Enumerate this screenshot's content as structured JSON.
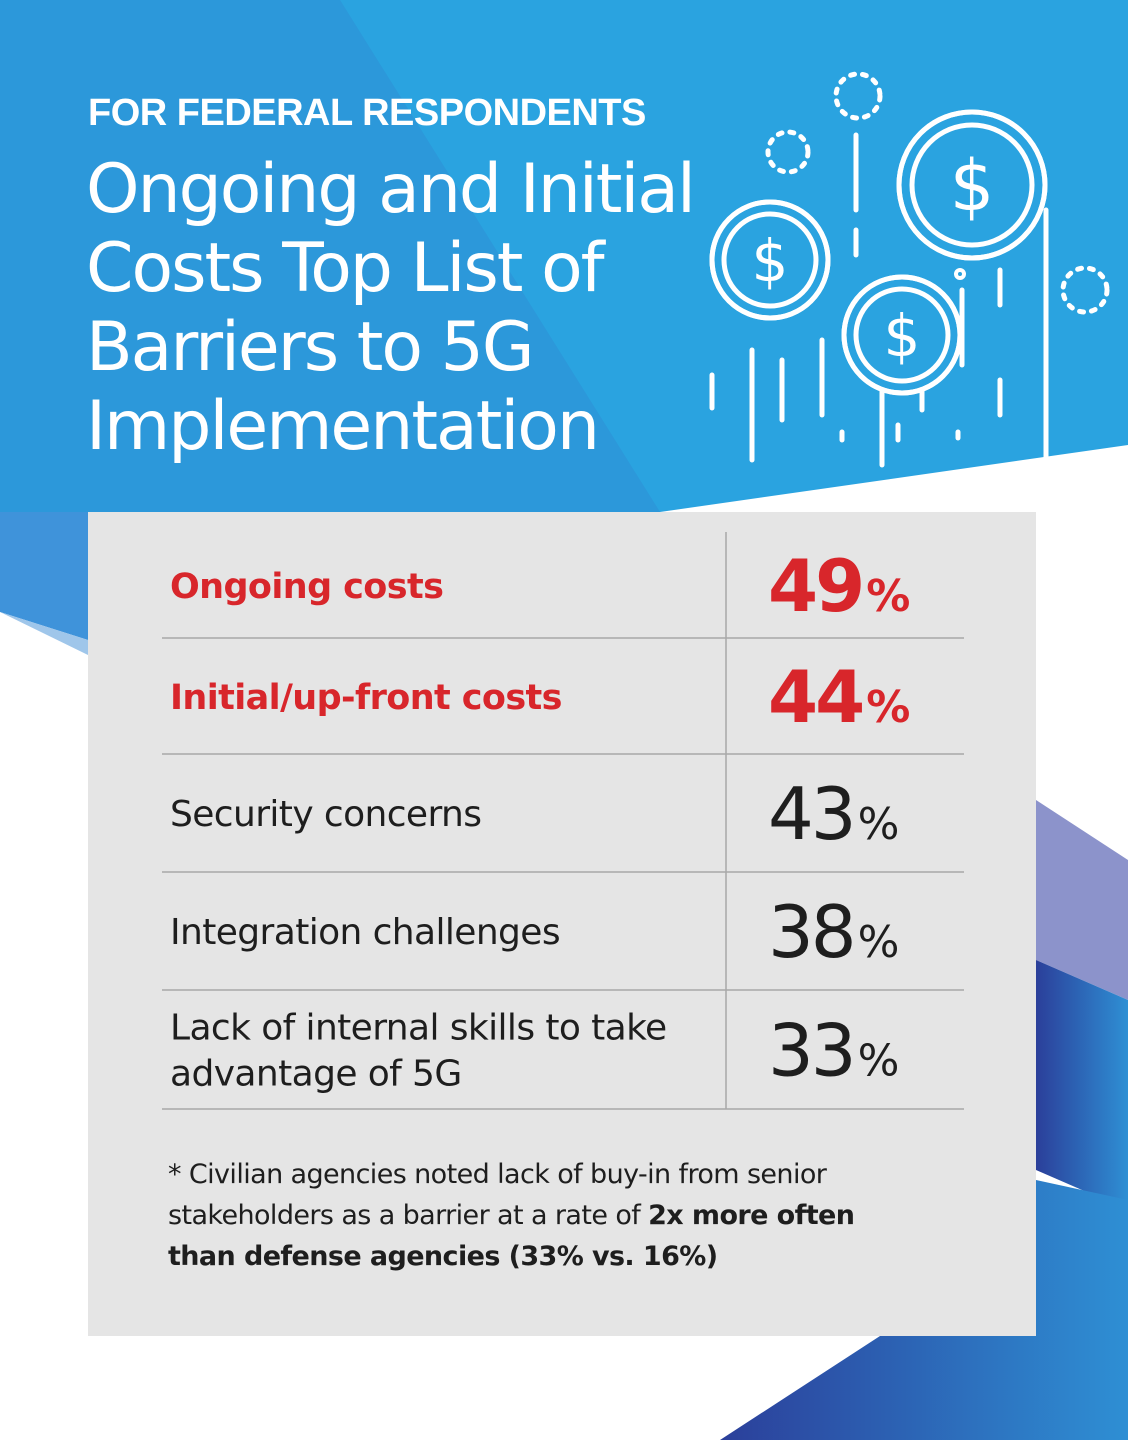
{
  "header": {
    "eyebrow": "FOR FEDERAL RESPONDENTS",
    "title": "Ongoing and Initial Costs Top List of Barriers to 5G Implementation"
  },
  "icons": {
    "illustration": "dollar-coins-icon"
  },
  "colors": {
    "blue": "#29a3df",
    "red": "#d8262b",
    "panel": "#e5e5e5",
    "text": "#1e1e1e"
  },
  "chart_data": {
    "type": "table",
    "title": "",
    "categories": [
      "Ongoing costs",
      "Initial/up-front costs",
      "Security concerns",
      "Integration challenges",
      "Lack of internal skills to take advantage of 5G"
    ],
    "label_lines": [
      [
        "Ongoing costs"
      ],
      [
        "Initial/up-front costs"
      ],
      [
        "Security concerns"
      ],
      [
        "Integration challenges"
      ],
      [
        "Lack of internal skills to take",
        "advantage of 5G"
      ]
    ],
    "values": [
      49,
      44,
      43,
      38,
      33
    ],
    "unit": "%",
    "highlighted": [
      true,
      true,
      false,
      false,
      false
    ]
  },
  "footnote": {
    "plain": "* Civilian agencies noted lack of buy-in from senior stakeholders as a barrier at a rate of ",
    "bold": "2x more often than defense agencies (33% vs. 16%)"
  }
}
